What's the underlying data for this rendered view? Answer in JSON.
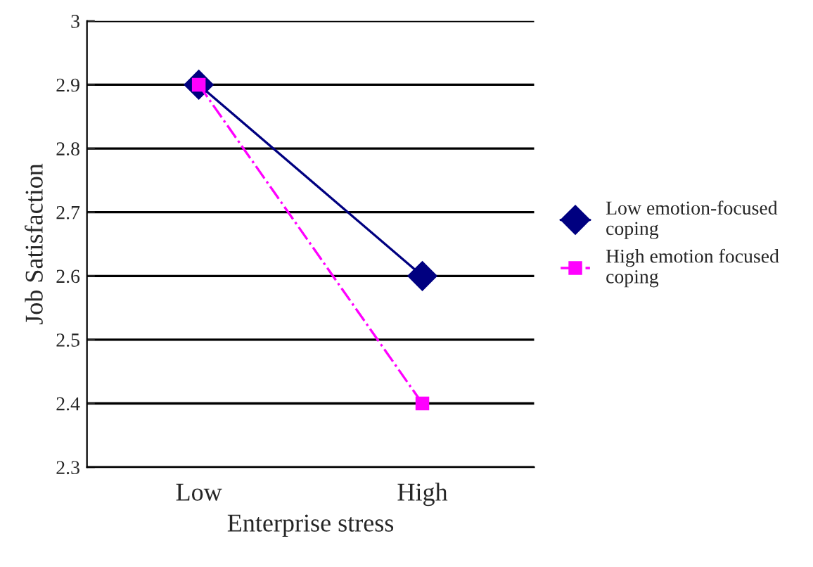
{
  "chart_data": {
    "type": "line",
    "xlabel": "Enterprise stress",
    "ylabel": "Job Satisfaction",
    "categories": [
      "Low",
      "High"
    ],
    "series": [
      {
        "name": "Low emotion-focused coping",
        "color": "#000080",
        "values": [
          2.9,
          2.6
        ],
        "marker": "diamond",
        "line_style": "solid"
      },
      {
        "name": "High emotion focused coping",
        "color": "#ff00ff",
        "values": [
          2.9,
          2.4
        ],
        "marker": "square",
        "line_style": "dashdot"
      }
    ],
    "ylim": [
      2.3,
      3
    ],
    "yticks": [
      2.3,
      2.4,
      2.5,
      2.6,
      2.7,
      2.8,
      2.9,
      3
    ],
    "grid": "y",
    "legend": "right"
  }
}
